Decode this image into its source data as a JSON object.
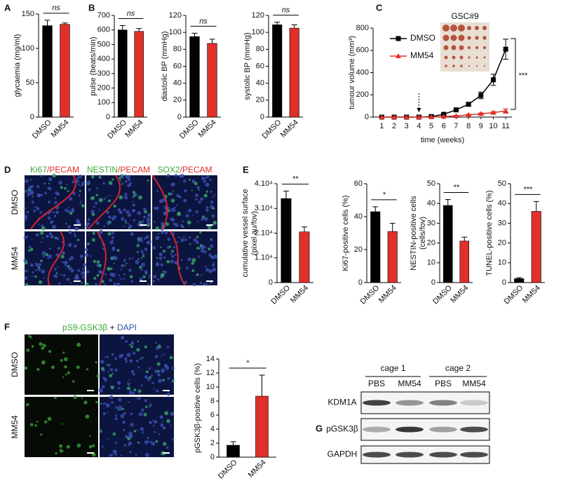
{
  "panels": [
    "A",
    "B",
    "C",
    "D",
    "E",
    "F",
    "G"
  ],
  "microscopy": {
    "columns": [
      [
        "Ki67",
        "/PECAM"
      ],
      [
        "NESTIN",
        "/PECAM"
      ],
      [
        "SOX2",
        "/PECAM"
      ]
    ],
    "rows": [
      "DMSO",
      "MM54"
    ]
  },
  "staining": {
    "stain": "pS9-GSK3β",
    "joiner": " + ",
    "counterstain": "DAPI",
    "rows": [
      "DMSO",
      "MM54"
    ]
  },
  "blot": {
    "groups": [
      "cage 1",
      "cage 2"
    ],
    "lanes": [
      "PBS",
      "MM54",
      "PBS",
      "MM54"
    ],
    "proteins": [
      "KDM1A",
      "pGSK3β",
      "GAPDH"
    ]
  },
  "chart_data": [
    {
      "type": "bar",
      "ylabel": "glycaemia (mg/ml)",
      "categories": [
        "DMSO",
        "MM54"
      ],
      "values": [
        133,
        135
      ],
      "errors": [
        8,
        2
      ],
      "colors": [
        "#000000",
        "#e0302a"
      ],
      "ylim": [
        0,
        150
      ],
      "yticks": [
        0,
        50,
        100,
        150
      ],
      "annotation": "ns"
    },
    {
      "type": "bar",
      "ylabel": "pulse (beats/min)",
      "categories": [
        "DMSO",
        "MM54"
      ],
      "values": [
        600,
        590
      ],
      "errors": [
        30,
        20
      ],
      "colors": [
        "#000000",
        "#e0302a"
      ],
      "ylim": [
        0,
        700
      ],
      "yticks": [
        0,
        100,
        200,
        300,
        400,
        500,
        600,
        700
      ],
      "annotation": "ns"
    },
    {
      "type": "bar",
      "ylabel": "diastolic BP (mmHg)",
      "categories": [
        "DMSO",
        "MM54"
      ],
      "values": [
        95,
        87
      ],
      "errors": [
        4,
        5
      ],
      "colors": [
        "#000000",
        "#e0302a"
      ],
      "ylim": [
        0,
        120
      ],
      "yticks": [
        0,
        20,
        40,
        60,
        80,
        100,
        120
      ],
      "annotation": "ns"
    },
    {
      "type": "bar",
      "ylabel": "systolic BP (mmHg)",
      "categories": [
        "DMSO",
        "MM54"
      ],
      "values": [
        109,
        105
      ],
      "errors": [
        3,
        4
      ],
      "colors": [
        "#000000",
        "#e0302a"
      ],
      "ylim": [
        0,
        120
      ],
      "yticks": [
        0,
        20,
        40,
        60,
        80,
        100,
        120
      ],
      "annotation": "ns"
    },
    {
      "type": "line",
      "xlabel": "time (weeks)",
      "ylabel": "tumour volume (mm³)",
      "x": [
        1,
        2,
        3,
        4,
        5,
        6,
        7,
        8,
        9,
        10,
        11
      ],
      "series": [
        {
          "name": "DMSO",
          "color": "#000000",
          "marker": "square",
          "values": [
            0,
            0,
            0,
            0,
            5,
            25,
            65,
            115,
            195,
            335,
            610
          ],
          "errors": [
            0,
            0,
            0,
            0,
            3,
            8,
            10,
            15,
            30,
            50,
            90
          ]
        },
        {
          "name": "MM54",
          "color": "#e0302a",
          "marker": "triangle",
          "values": [
            0,
            0,
            0,
            0,
            0,
            5,
            10,
            20,
            30,
            40,
            55
          ],
          "errors": [
            0,
            0,
            0,
            0,
            2,
            3,
            5,
            6,
            8,
            10,
            20
          ]
        }
      ],
      "xlim": [
        0.3,
        11.5
      ],
      "xticks": [
        1,
        2,
        3,
        4,
        5,
        6,
        7,
        8,
        9,
        10,
        11
      ],
      "ylim": [
        0,
        800
      ],
      "yticks": [
        0,
        200,
        400,
        600,
        800
      ],
      "annotation": "***",
      "inset_label": "GSC#9"
    },
    {
      "type": "bar",
      "ylabel": [
        "cumulative vessel surface",
        "(pixel au/fov)"
      ],
      "categories": [
        "DMSO",
        "MM54"
      ],
      "values": [
        34000,
        20500
      ],
      "errors": [
        3000,
        2000
      ],
      "colors": [
        "#000000",
        "#e0302a"
      ],
      "ylim": [
        0,
        40000
      ],
      "yticks": [
        0,
        {
          "value": 10000,
          "label": "1.10⁴"
        },
        {
          "value": 20000,
          "label": "2.10⁴"
        },
        {
          "value": 30000,
          "label": "3.10⁴"
        },
        {
          "value": 40000,
          "label": "4.10⁴"
        }
      ],
      "annotation": "**"
    },
    {
      "type": "bar",
      "ylabel": "Ki67-positive cells (%)",
      "categories": [
        "DMSO",
        "MM54"
      ],
      "values": [
        43,
        31
      ],
      "errors": [
        3,
        5
      ],
      "colors": [
        "#000000",
        "#e0302a"
      ],
      "ylim": [
        0,
        60
      ],
      "yticks": [
        0,
        20,
        40,
        60
      ],
      "annotation": "*"
    },
    {
      "type": "bar",
      "ylabel": [
        "NESTIN-positive cells",
        "(cells/fov)"
      ],
      "categories": [
        "DMSO",
        "MM54"
      ],
      "values": [
        39,
        21
      ],
      "errors": [
        3,
        2
      ],
      "colors": [
        "#000000",
        "#e0302a"
      ],
      "ylim": [
        0,
        50
      ],
      "yticks": [
        0,
        10,
        20,
        30,
        40,
        50
      ],
      "annotation": "**"
    },
    {
      "type": "bar",
      "ylabel": "TUNEL-positive cells (%)",
      "categories": [
        "DMSO",
        "MM54"
      ],
      "values": [
        2,
        36
      ],
      "errors": [
        0.5,
        5
      ],
      "colors": [
        "#000000",
        "#e0302a"
      ],
      "ylim": [
        0,
        50
      ],
      "yticks": [
        0,
        10,
        20,
        30,
        40,
        50
      ],
      "annotation": "***"
    },
    {
      "type": "bar",
      "ylabel": "pGSK3β-positive cells (%)",
      "categories": [
        "DMSO",
        "MM54"
      ],
      "values": [
        1.7,
        8.7
      ],
      "errors": [
        0.5,
        3
      ],
      "colors": [
        "#000000",
        "#e0302a"
      ],
      "ylim": [
        0,
        14
      ],
      "yticks": [
        0,
        2,
        4,
        6,
        8,
        10,
        12,
        14
      ],
      "annotation": "*"
    }
  ]
}
